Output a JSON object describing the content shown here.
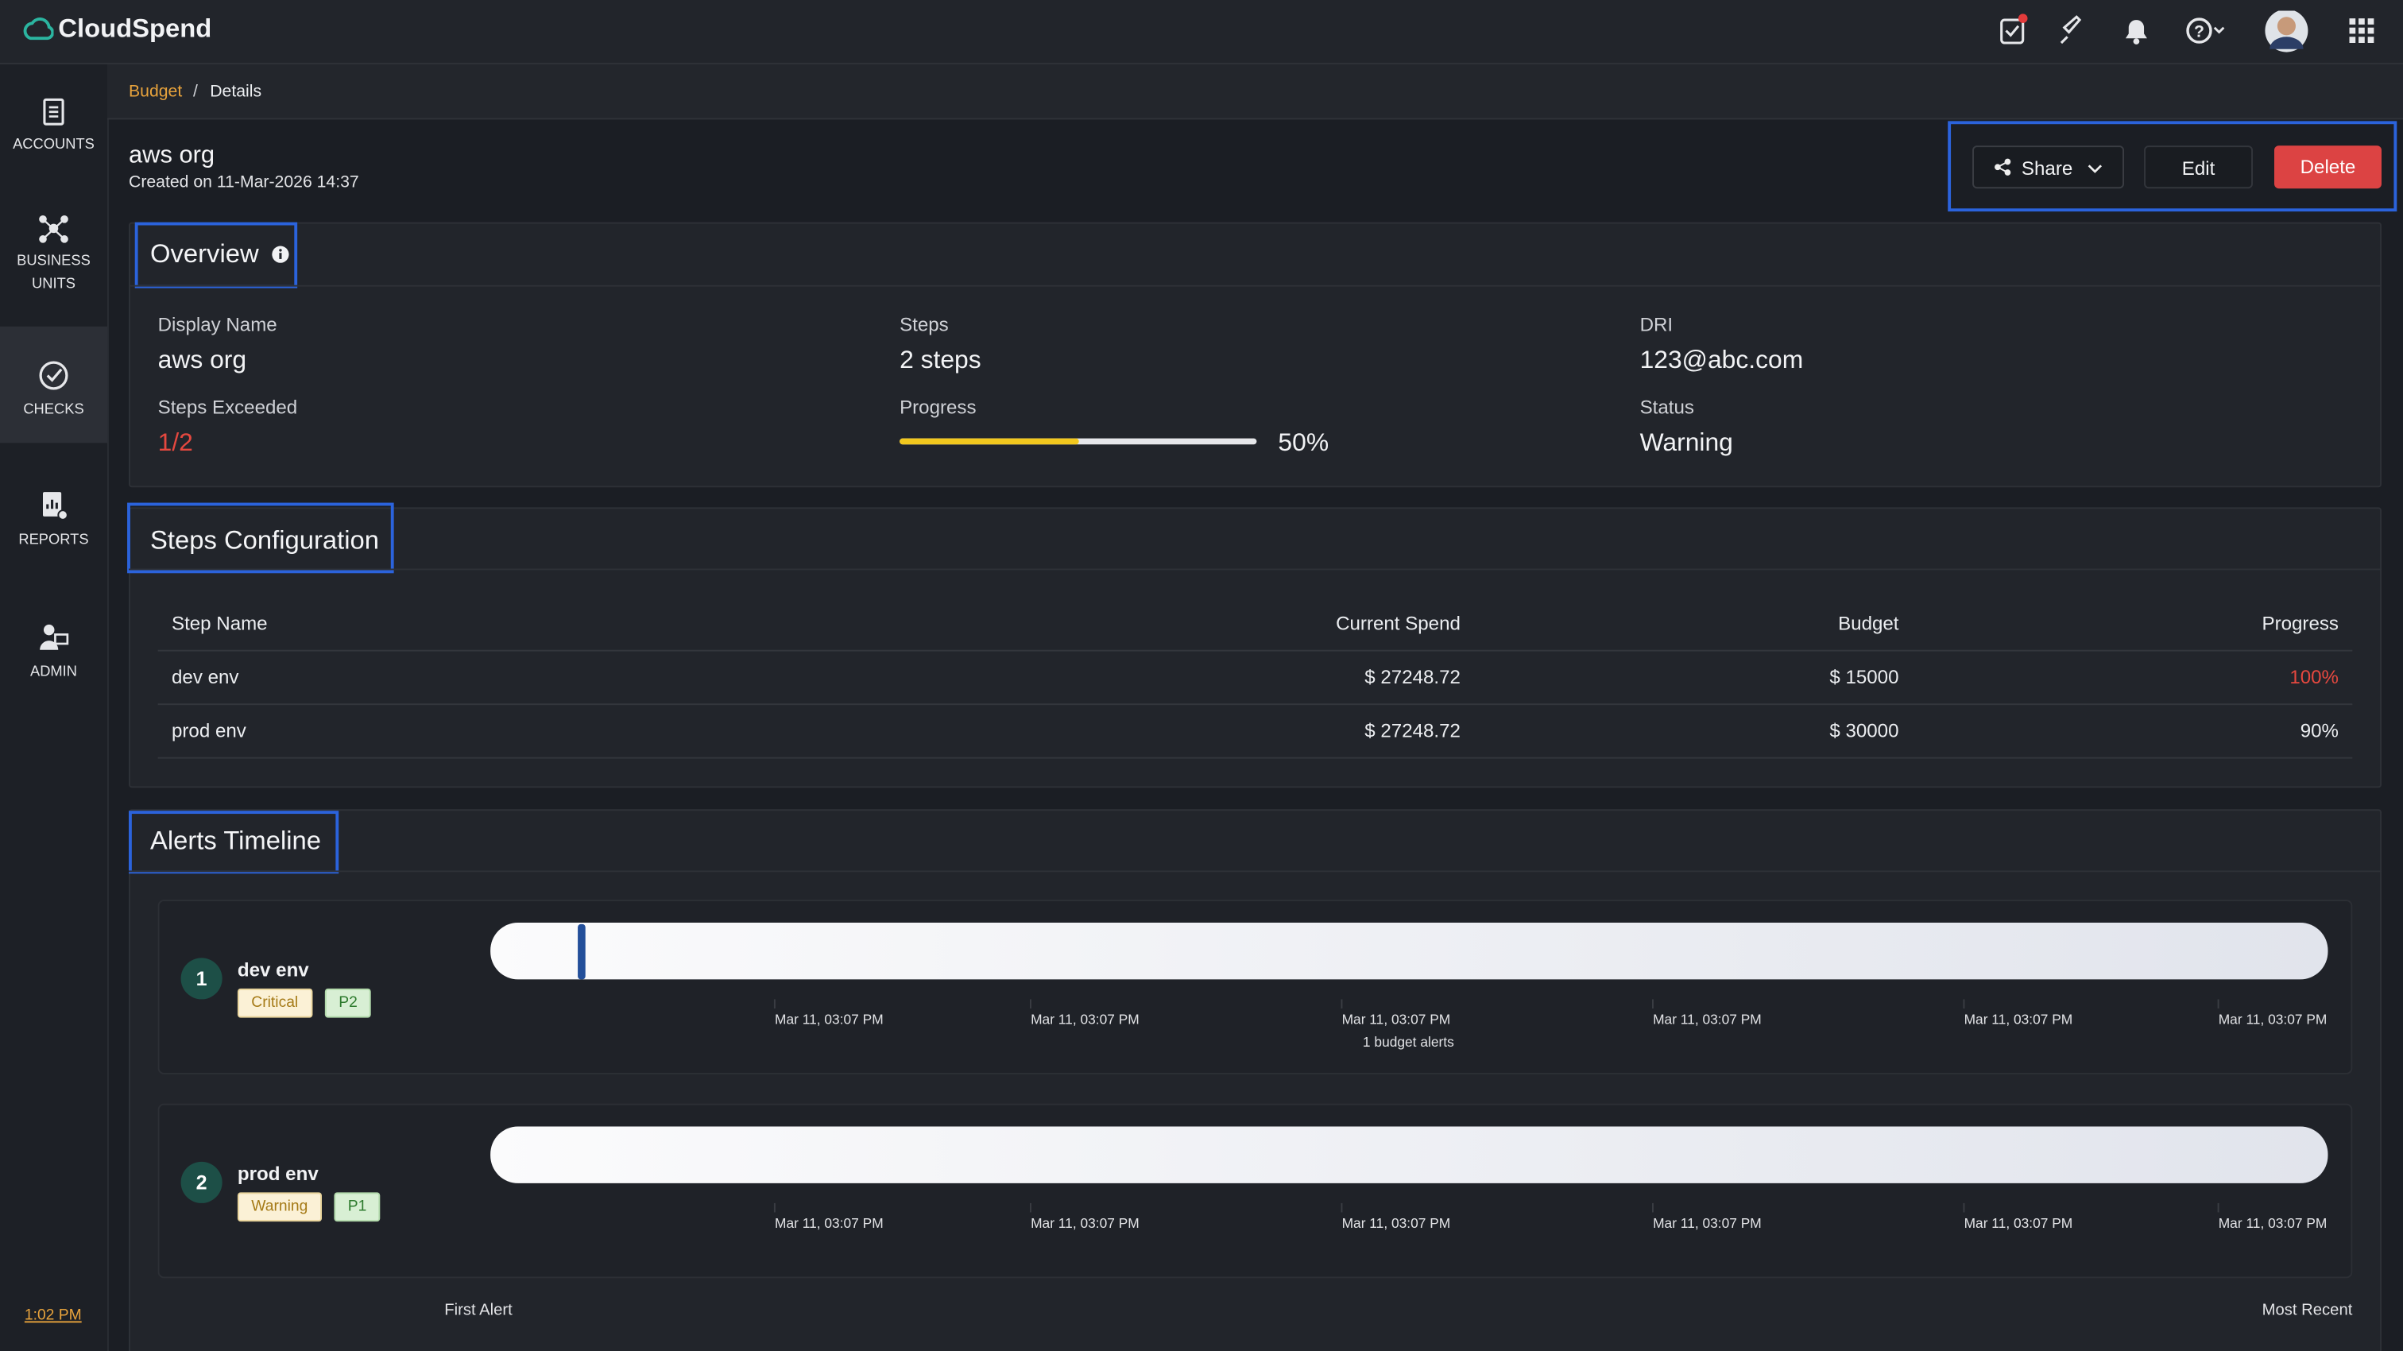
{
  "header": {
    "brand": "CloudSpend"
  },
  "sidebar": {
    "items": [
      "ACCOUNTS",
      "BUSINESS UNITS",
      "CHECKS",
      "REPORTS",
      "ADMIN"
    ],
    "time": "1:02 PM"
  },
  "breadcrumb": [
    "Budget",
    "Details"
  ],
  "budget": {
    "name": "aws org",
    "created": "Created on 11-Mar-2026 14:37"
  },
  "actions": [
    "Share",
    "Edit",
    "Delete"
  ],
  "overview": {
    "title": "Overview",
    "fields": [
      {
        "label": "Display Name",
        "value": "aws org"
      },
      {
        "label": "Steps",
        "value": "2 steps"
      },
      {
        "label": "DRI",
        "value": "123@abc.com"
      },
      {
        "label": "Steps Exceeded",
        "value": "1/2"
      },
      {
        "label": "Progress",
        "value": {
          "value": 50,
          "label": "50%"
        }
      },
      {
        "label": "Status",
        "value": "Warning"
      }
    ]
  },
  "steps": {
    "title": "Steps Configuration",
    "columns": [
      "Step Name",
      "Current Spend",
      "Budget",
      "Progress"
    ],
    "rows": [
      [
        "dev env",
        "$ 27248.72",
        "$ 15000",
        "100%"
      ],
      [
        "prod env",
        "$ 27248.72",
        "$ 30000",
        "90%"
      ]
    ]
  },
  "alerts": {
    "title": "Alerts Timeline",
    "items": [
      {
        "index": 1,
        "name": "dev env",
        "severity": "Critical",
        "priority": "P2",
        "ticks": [
          "Mar 11, 03:07 PM",
          "Mar 11, 03:07 PM",
          "Mar 11, 03:07 PM",
          "Mar 11, 03:07 PM",
          "Mar 11, 03:07 PM",
          "Mar 11, 03:07 PM"
        ],
        "note": "1 budget alerts"
      },
      {
        "index": 2,
        "name": "prod env",
        "severity": "Warning",
        "priority": "P1",
        "ticks": [
          "Mar 11, 03:07 PM",
          "Mar 11, 03:07 PM",
          "Mar 11, 03:07 PM",
          "Mar 11, 03:07 PM",
          "Mar 11, 03:07 PM",
          "Mar 11, 03:07 PM"
        ]
      }
    ],
    "first": "First Alert",
    "recent": "Most Recent"
  }
}
